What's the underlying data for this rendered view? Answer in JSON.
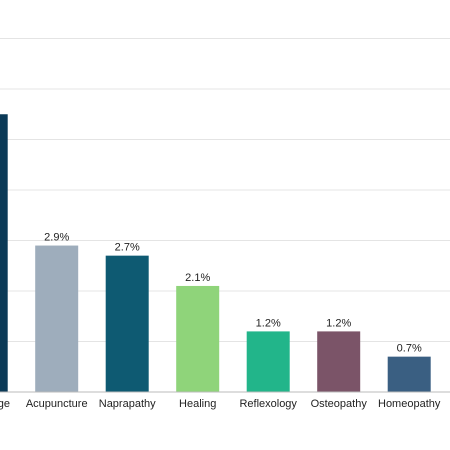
{
  "chart_data": {
    "type": "bar",
    "categories": [
      "ge",
      "Acupuncture",
      "Naprapathy",
      "Healing",
      "Reflexology",
      "Osteopathy",
      "Homeopathy"
    ],
    "series": [
      {
        "values": [
          5.5,
          2.9,
          2.7,
          2.1,
          1.2,
          1.2,
          0.7
        ],
        "value_labels": [
          "",
          "2.9%",
          "2.7%",
          "2.1%",
          "1.2%",
          "1.2%",
          "0.7%"
        ],
        "colors": [
          "#0b3a57",
          "#9eadbc",
          "#0e5a72",
          "#8fd47a",
          "#22b58a",
          "#7b5468",
          "#3a5f82"
        ]
      }
    ],
    "ylim": [
      0,
      7
    ],
    "y_gridlines": [
      1,
      2,
      3,
      4,
      5,
      6,
      7
    ],
    "grid": true,
    "legend": "none"
  }
}
